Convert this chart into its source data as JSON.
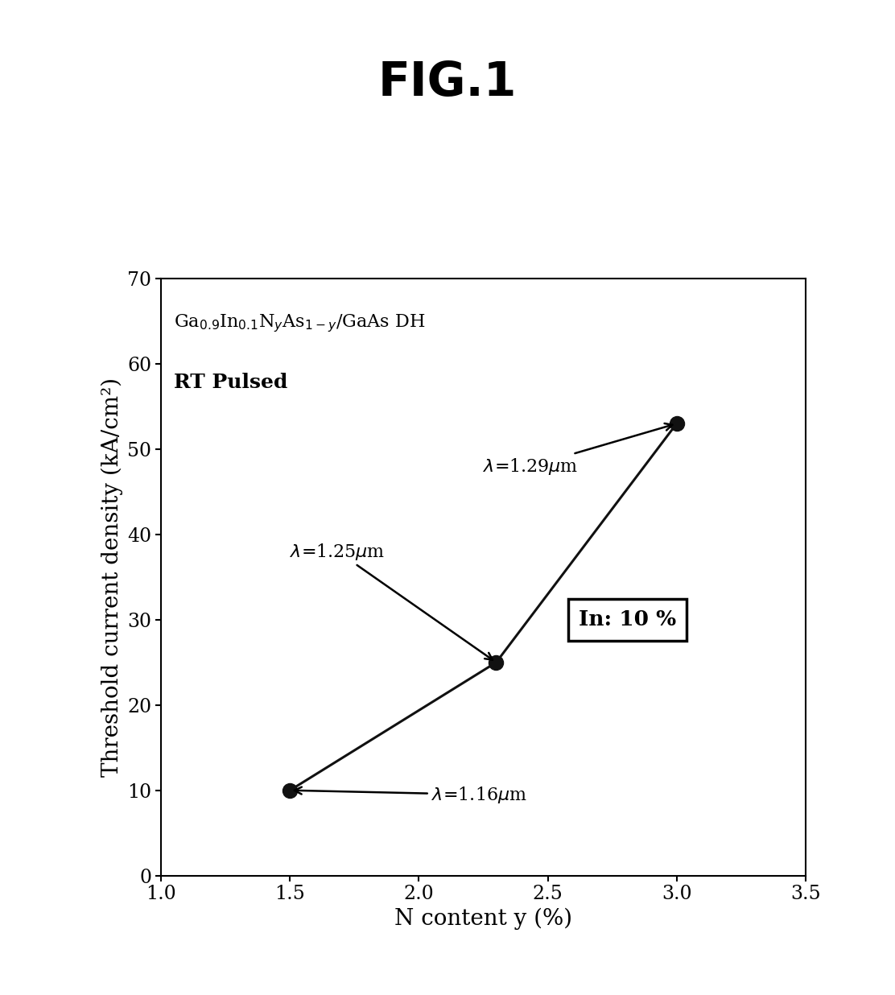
{
  "title": "FIG.1",
  "xlabel": "N content y (%)",
  "ylabel": "Threshold current density (kA/cm²)",
  "xlim": [
    1.0,
    3.5
  ],
  "ylim": [
    0,
    70
  ],
  "xticks": [
    1.0,
    1.5,
    2.0,
    2.5,
    3.0,
    3.5
  ],
  "yticks": [
    0,
    10,
    20,
    30,
    40,
    50,
    60,
    70
  ],
  "x_data": [
    1.5,
    2.3,
    3.0
  ],
  "y_data": [
    10,
    25,
    53
  ],
  "point_color": "#111111",
  "line_color": "#111111",
  "marker_size": 13,
  "annotation_formula": "Ga$_{0.9}$In$_{0.1}$N$_{y}$As$_{1-y}$/GaAs DH",
  "annotation_rt": "RT Pulsed",
  "label_1": "$\\lambda$=1.16$\\mu$m",
  "label_2": "$\\lambda$=1.25$\\mu$m",
  "label_3": "$\\lambda$=1.29$\\mu$m",
  "box_label": "In: 10 %",
  "background_color": "#ffffff",
  "title_fontsize": 42,
  "axis_fontsize": 20,
  "tick_fontsize": 17,
  "annotation_fontsize": 16,
  "label_fontsize": 16
}
